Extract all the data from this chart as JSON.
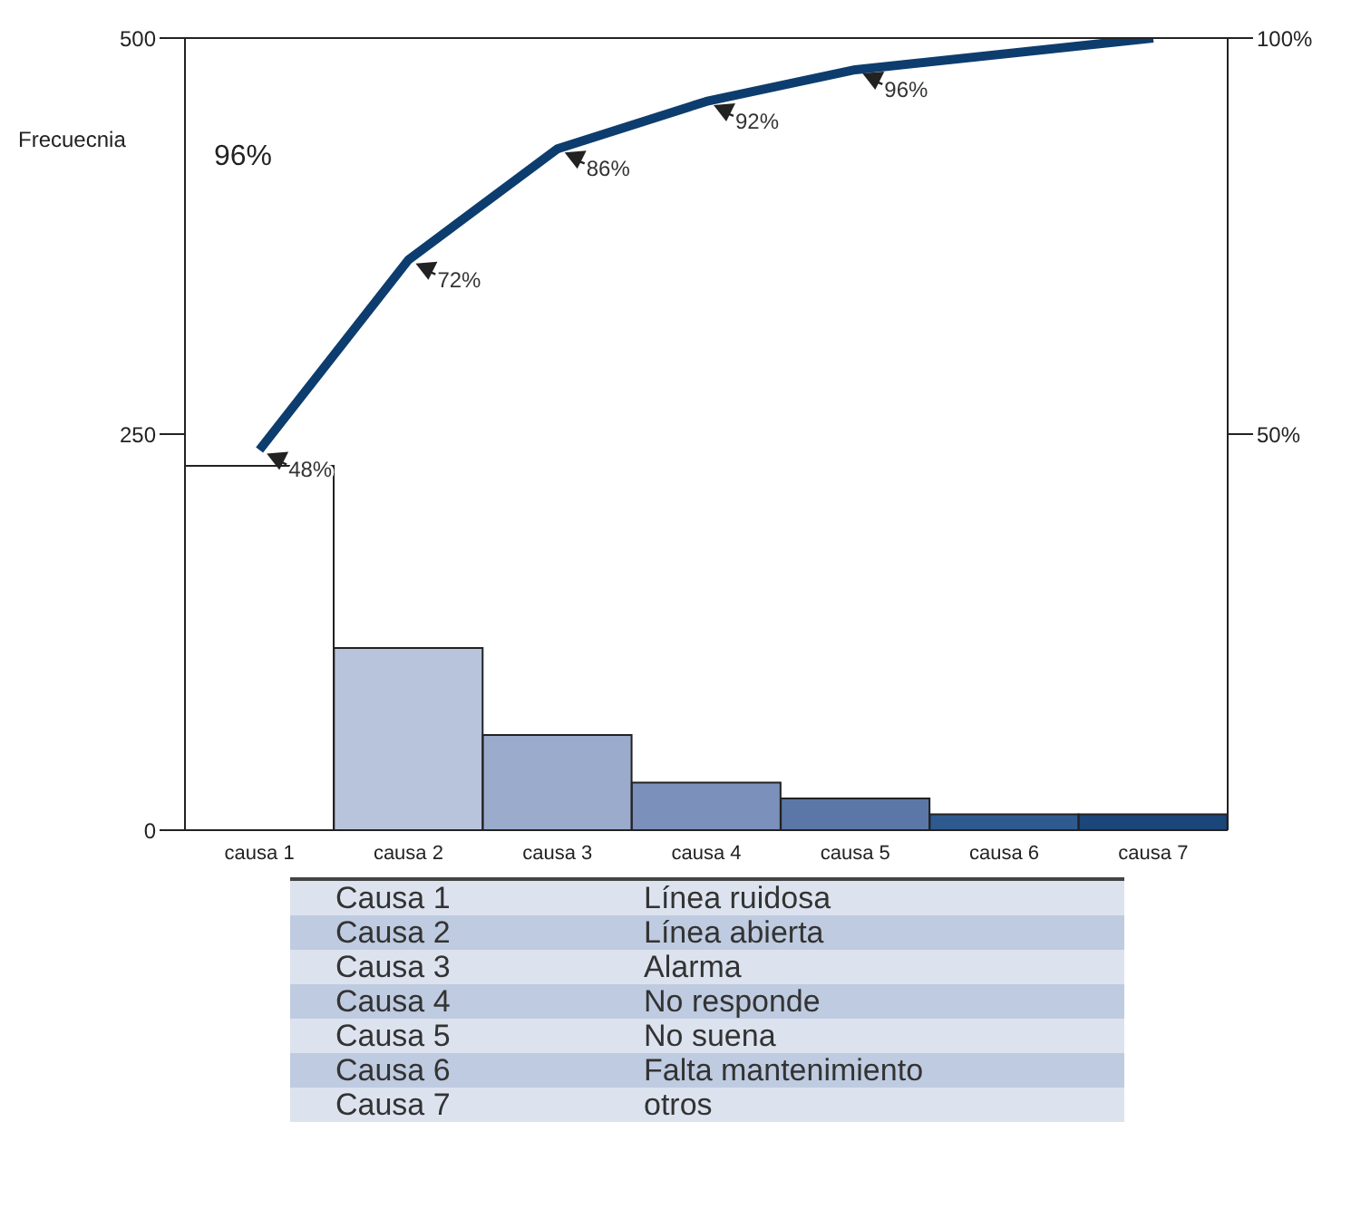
{
  "chart_data": {
    "type": "bar",
    "ylabel": "Frecuecnia",
    "categories": [
      "causa 1",
      "causa 2",
      "causa 3",
      "causa 4",
      "causa 5",
      "causa 6",
      "causa 7"
    ],
    "series": [
      {
        "values": [
          230,
          115,
          60,
          30,
          20,
          10,
          10
        ],
        "colors": [
          "#ffffff",
          "#b8c4dc",
          "#9aabcc",
          "#7b90bb",
          "#5a77a8",
          "#2f5a8f",
          "#1b4679"
        ]
      },
      {
        "type": "line",
        "axis": "y2",
        "values": [
          48,
          72,
          86,
          92,
          96,
          null,
          100
        ],
        "color": "#0d3d6e",
        "value_labels": [
          "48%",
          "72%",
          "86%",
          "92%",
          "96%",
          null,
          null
        ]
      }
    ],
    "ylim": [
      0,
      500
    ],
    "yticks": [
      0,
      250,
      500
    ],
    "y2lim": [
      0,
      100
    ],
    "y2ticks": [
      {
        "value": 50,
        "label": "50%"
      },
      {
        "value": 100,
        "label": "100%"
      }
    ],
    "annotations": [
      "96%",
      "Causa 1",
      "Línea ruidosa",
      "Causa 2",
      "Línea abierta",
      "Causa 3",
      "Alarma",
      "Causa 4",
      "No responde",
      "Causa 5",
      "No suena",
      "Causa 6",
      "Falta mantenimiento",
      "Causa 7",
      "otros"
    ]
  }
}
